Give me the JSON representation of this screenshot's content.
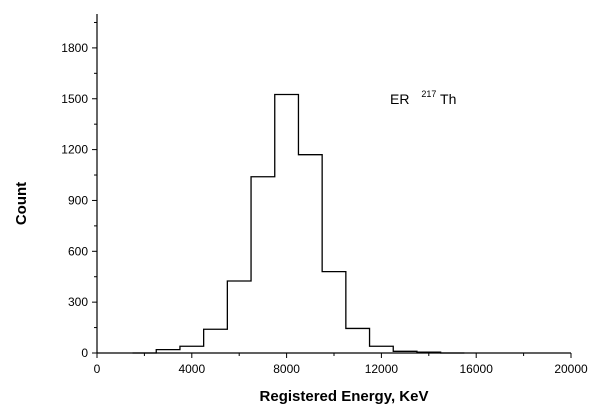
{
  "chart_data": {
    "type": "histogram",
    "title": "",
    "xlabel": "Registered Energy, KeV",
    "ylabel": "Count",
    "xlim": [
      0,
      20000
    ],
    "ylim": [
      0,
      2000
    ],
    "xticks": [
      "0",
      "4000",
      "8000",
      "12000",
      "16000",
      "20000"
    ],
    "xtick_values": [
      0,
      4000,
      8000,
      12000,
      16000,
      20000
    ],
    "yticks": [
      "0",
      "300",
      "600",
      "900",
      "1200",
      "1500",
      "1800"
    ],
    "ytick_values": [
      0,
      300,
      600,
      900,
      1200,
      1500,
      1800
    ],
    "grid": false,
    "bin_width": 1000,
    "bins": [
      {
        "x0": 1500,
        "x1": 2500,
        "count": 0
      },
      {
        "x0": 2500,
        "x1": 3500,
        "count": 20
      },
      {
        "x0": 3500,
        "x1": 4500,
        "count": 40
      },
      {
        "x0": 4500,
        "x1": 5500,
        "count": 140
      },
      {
        "x0": 5500,
        "x1": 6500,
        "count": 425
      },
      {
        "x0": 6500,
        "x1": 7500,
        "count": 1040
      },
      {
        "x0": 7500,
        "x1": 8500,
        "count": 1525
      },
      {
        "x0": 8500,
        "x1": 9500,
        "count": 1170
      },
      {
        "x0": 9500,
        "x1": 10500,
        "count": 480
      },
      {
        "x0": 10500,
        "x1": 11500,
        "count": 145
      },
      {
        "x0": 11500,
        "x1": 12500,
        "count": 40
      },
      {
        "x0": 12500,
        "x1": 13500,
        "count": 10
      },
      {
        "x0": 13500,
        "x1": 14500,
        "count": 5
      },
      {
        "x0": 14500,
        "x1": 15500,
        "count": 0
      }
    ],
    "annotation": {
      "prefix": "ER",
      "superscript": "217",
      "suffix": "Th"
    }
  }
}
